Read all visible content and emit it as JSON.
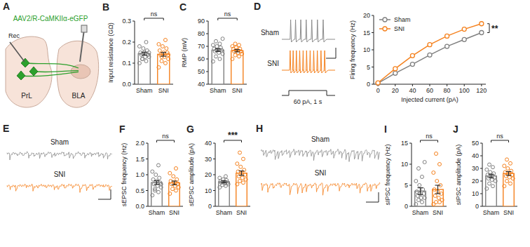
{
  "chart_data": [
    {
      "type": "diagram",
      "title": "A",
      "label": "AAV2/R-CaMKIIα-eGFP",
      "color": "#2ca02c",
      "nodes": [
        {
          "label": "Rec"
        },
        {
          "label": "PrL"
        },
        {
          "label": "BLA"
        }
      ]
    },
    {
      "type": "bar",
      "title": "B",
      "ylabel": "Input resistance (GΩ)",
      "categories": [
        "Sham",
        "SNI"
      ],
      "values": [
        0.145,
        0.142
      ],
      "errors": [
        0.007,
        0.009
      ],
      "colors": [
        "#808080",
        "#f5821f"
      ],
      "points": [
        [
          0.1,
          0.11,
          0.12,
          0.13,
          0.13,
          0.14,
          0.14,
          0.15,
          0.15,
          0.16,
          0.17,
          0.18,
          0.2,
          0.12,
          0.15
        ],
        [
          0.08,
          0.1,
          0.11,
          0.12,
          0.13,
          0.14,
          0.15,
          0.15,
          0.16,
          0.17,
          0.18,
          0.19,
          0.21,
          0.13,
          0.14
        ]
      ],
      "ylim": [
        0,
        0.3
      ],
      "yticks": [
        {
          "value": 0,
          "label": "0.0"
        },
        0.1,
        0.2,
        0.3
      ],
      "annotation": "ns"
    },
    {
      "type": "bar",
      "title": "C",
      "ylabel": "RMP (mV)",
      "categories": [
        "Sham",
        "SNI"
      ],
      "values": [
        67,
        66.5
      ],
      "errors": [
        1.1,
        0.9
      ],
      "colors": [
        "#808080",
        "#f5821f"
      ],
      "points": [
        [
          58,
          60,
          62,
          64,
          65,
          66,
          67,
          67,
          68,
          69,
          70,
          71,
          72,
          74,
          76
        ],
        [
          60,
          62,
          63,
          64,
          65,
          66,
          66,
          67,
          68,
          68,
          69,
          70,
          71,
          72
        ]
      ],
      "ylim": [
        40,
        90
      ],
      "yticks": [
        40,
        50,
        60,
        70,
        80,
        90
      ],
      "annotation": "ns"
    },
    {
      "type": "trace",
      "title": "D",
      "annotation": "60 pA, 1 s",
      "series": [
        {
          "name": "Sham",
          "color": "#8c8c8c",
          "spikes": 7
        },
        {
          "name": "SNI",
          "color": "#f5821f",
          "spikes": 11
        }
      ]
    },
    {
      "type": "line",
      "xlabel": "Injected current (pA)",
      "ylabel": "Firing frequency (Hz)",
      "x": [
        0,
        20,
        40,
        60,
        80,
        100,
        120
      ],
      "series": [
        {
          "name": "Sham",
          "color": "#808080",
          "marker": "circle",
          "values": [
            0.3,
            3.2,
            5.8,
            8.5,
            11,
            13,
            15
          ],
          "errors": [
            0.2,
            0.4,
            0.5,
            0.5,
            0.6,
            0.6,
            0.6
          ]
        },
        {
          "name": "SNI",
          "color": "#f5821f",
          "marker": "circle",
          "values": [
            0.4,
            4.5,
            8.3,
            11.5,
            14,
            16,
            17.6
          ],
          "errors": [
            0.2,
            0.4,
            0.5,
            0.6,
            0.6,
            0.6,
            0.7
          ]
        }
      ],
      "xlim": [
        -5,
        125
      ],
      "ylim": [
        0,
        20
      ],
      "xticks": [
        0,
        20,
        40,
        60,
        80,
        100,
        120
      ],
      "yticks": [
        0,
        5,
        10,
        15,
        20
      ],
      "legend": "upper left",
      "annotation": "**"
    },
    {
      "type": "trace",
      "title": "E",
      "series": [
        {
          "name": "Sham",
          "color": "#8c8c8c",
          "events": 18
        },
        {
          "name": "SNI",
          "color": "#f5821f",
          "events": 15
        }
      ]
    },
    {
      "type": "bar",
      "title": "F",
      "ylabel": "sEPSC frequency (Hz)",
      "categories": [
        "Sham",
        "SNI"
      ],
      "values": [
        0.75,
        0.74
      ],
      "errors": [
        0.06,
        0.06
      ],
      "colors": [
        "#808080",
        "#f5821f"
      ],
      "points": [
        [
          0.35,
          0.45,
          0.5,
          0.6,
          0.65,
          0.7,
          0.75,
          0.8,
          0.85,
          0.9,
          1.0,
          1.1,
          1.3,
          0.55,
          0.7
        ],
        [
          0.4,
          0.5,
          0.55,
          0.6,
          0.65,
          0.7,
          0.72,
          0.75,
          0.8,
          0.85,
          0.95,
          1.05,
          1.2
        ]
      ],
      "ylim": [
        0,
        2
      ],
      "yticks": [
        {
          "value": 0,
          "label": "0.0"
        },
        0.5,
        {
          "value": 1,
          "label": "1.0"
        },
        1.5,
        {
          "value": 2,
          "label": "2.0"
        }
      ],
      "annotation": "ns"
    },
    {
      "type": "bar",
      "title": "G",
      "ylabel": "sEPSC amplitude (pA)",
      "categories": [
        "Sham",
        "SNI"
      ],
      "values": [
        15.5,
        21
      ],
      "errors": [
        0.6,
        1.4
      ],
      "colors": [
        "#808080",
        "#f5821f"
      ],
      "points": [
        [
          12,
          13,
          13.5,
          14,
          14.5,
          15,
          15,
          15.5,
          16,
          16.5,
          17,
          18,
          19
        ],
        [
          14,
          15,
          16,
          17,
          18,
          19,
          20,
          21,
          22,
          23,
          25,
          27,
          30,
          34
        ]
      ],
      "ylim": [
        0,
        40
      ],
      "yticks": [
        0,
        10,
        20,
        30,
        40
      ],
      "annotation": "***"
    },
    {
      "type": "trace",
      "title": "H",
      "series": [
        {
          "name": "Sham",
          "color": "#8c8c8c",
          "events": 30
        },
        {
          "name": "SNI",
          "color": "#f5821f",
          "events": 22
        }
      ]
    },
    {
      "type": "bar",
      "title": "I",
      "ylabel": "sIPSC frequency (Hz)",
      "categories": [
        "Sham",
        "SNI"
      ],
      "values": [
        3.6,
        4.0
      ],
      "errors": [
        0.8,
        1.0
      ],
      "colors": [
        "#808080",
        "#f5821f"
      ],
      "points": [
        [
          0.5,
          1,
          1.5,
          2,
          2,
          2.5,
          3,
          3,
          3.5,
          4,
          5,
          6,
          7,
          9,
          10.5
        ],
        [
          0.5,
          1,
          1,
          1.5,
          2,
          2.5,
          3,
          3.5,
          4,
          5,
          6,
          8,
          10,
          12.5
        ]
      ],
      "ylim": [
        0,
        15
      ],
      "yticks": [
        0,
        5,
        10,
        15
      ],
      "annotation": "ns"
    },
    {
      "type": "bar",
      "title": "J",
      "ylabel": "sIPSC amplitude (pA)",
      "categories": [
        "Sham",
        "SNI"
      ],
      "values": [
        24,
        26
      ],
      "errors": [
        1.4,
        1.5
      ],
      "colors": [
        "#808080",
        "#f5821f"
      ],
      "points": [
        [
          14,
          16,
          18,
          20,
          21,
          22,
          23,
          24,
          25,
          26,
          27,
          29,
          31,
          33
        ],
        [
          16,
          18,
          20,
          22,
          23,
          24,
          25,
          26,
          27,
          28,
          30,
          32,
          34,
          37
        ]
      ],
      "ylim": [
        0,
        50
      ],
      "yticks": [
        0,
        10,
        20,
        30,
        40,
        50
      ],
      "annotation": "ns"
    }
  ]
}
